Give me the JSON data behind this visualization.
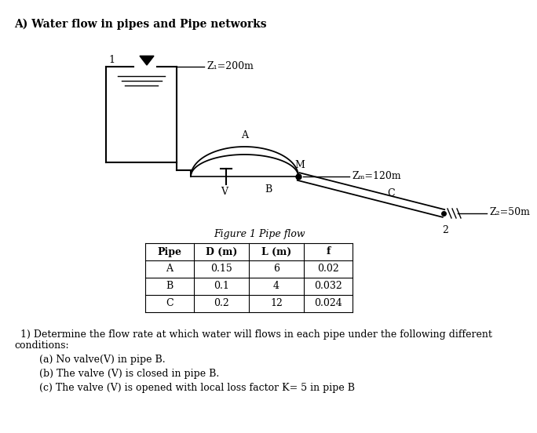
{
  "title": "A) Water flow in pipes and Pipe networks",
  "figure_caption": "Figure 1 Pipe flow",
  "z1_label": "Z₁=200m",
  "zm_label": "Zₘ=120m",
  "z2_label": "Z₂=50m",
  "label_A": "A",
  "label_B": "B",
  "label_M": "M",
  "label_C": "C",
  "label_V": "V",
  "label_1": "1",
  "label_2": "2",
  "table_headers": [
    "Pipe",
    "D (m)",
    "L (m)",
    "f"
  ],
  "table_rows": [
    [
      "A",
      "0.15",
      "6",
      "0.02"
    ],
    [
      "B",
      "0.1",
      "4",
      "0.032"
    ],
    [
      "C",
      "0.2",
      "12",
      "0.024"
    ]
  ],
  "question_line1": "  1) Determine the flow rate at which water will flows in each pipe under the following different",
  "question_line2": "conditions:",
  "conditions": [
    "        (a) No valve(V) in pipe B.",
    "        (b) The valve (V) is closed in pipe B.",
    "        (c) The valve (V) is opened with local loss factor K= 5 in pipe B"
  ],
  "bg_color": "#ffffff"
}
